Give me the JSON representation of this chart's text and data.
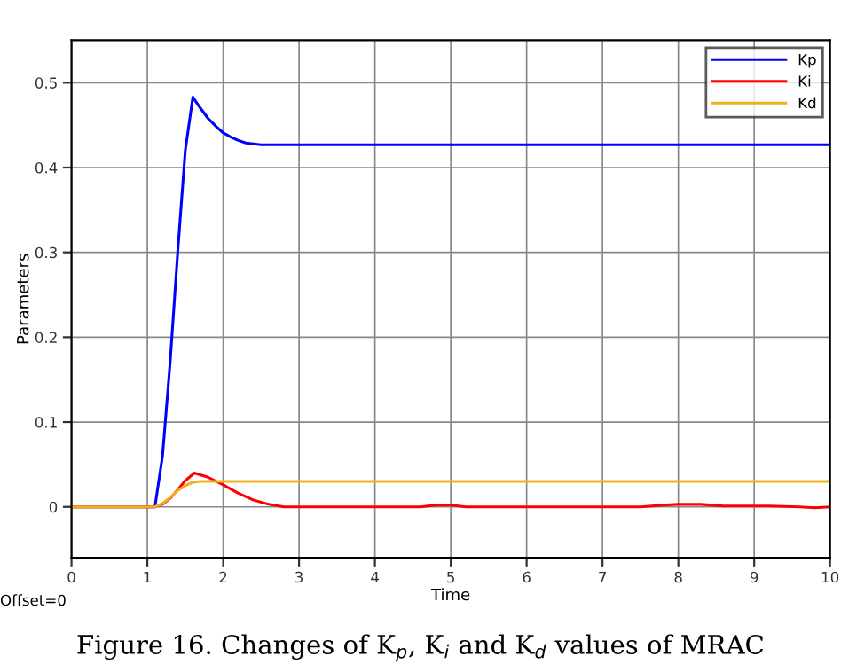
{
  "chart_data": {
    "type": "line",
    "xlabel": "Time",
    "ylabel": "Parameters",
    "xlim": [
      0,
      10
    ],
    "ylim": [
      -0.06,
      0.55
    ],
    "xticks": [
      0,
      1,
      2,
      3,
      4,
      5,
      6,
      7,
      8,
      9,
      10
    ],
    "yticks": [
      0,
      0.1,
      0.2,
      0.3,
      0.4,
      0.5
    ],
    "grid": true,
    "legend": "top right",
    "line_style": "solid",
    "annotations": [
      "Offset=0",
      "Figure 16. Changes of K$_{p}$, K$_{i}$ and K$_{d}$ values of MRAC"
    ],
    "series": [
      {
        "name": "Kp",
        "color": "#0000ff",
        "x": [
          0,
          1.1,
          1.2,
          1.3,
          1.4,
          1.5,
          1.6,
          1.7,
          1.8,
          1.9,
          2.0,
          2.1,
          2.2,
          2.3,
          2.5,
          3,
          10
        ],
        "values": [
          0,
          0,
          0.06,
          0.17,
          0.3,
          0.42,
          0.483,
          0.47,
          0.458,
          0.449,
          0.441,
          0.436,
          0.432,
          0.429,
          0.427,
          0.427,
          0.427
        ]
      },
      {
        "name": "Ki",
        "color": "#ff0000",
        "x": [
          0,
          1.1,
          1.2,
          1.3,
          1.4,
          1.5,
          1.62,
          1.8,
          2.0,
          2.2,
          2.4,
          2.6,
          2.8,
          4.6,
          4.8,
          5.0,
          5.2,
          7.5,
          7.8,
          8.0,
          8.3,
          8.6,
          9.2,
          9.6,
          9.8,
          10
        ],
        "values": [
          0,
          0,
          0.003,
          0.01,
          0.02,
          0.031,
          0.04,
          0.035,
          0.026,
          0.016,
          0.008,
          0.003,
          0,
          0,
          0.002,
          0.002,
          0,
          0,
          0.002,
          0.003,
          0.003,
          0.001,
          0.001,
          0,
          -0.001,
          0
        ]
      },
      {
        "name": "Kd",
        "color": "#edb120",
        "x": [
          0,
          1.1,
          1.2,
          1.3,
          1.4,
          1.5,
          1.6,
          1.7,
          1.8,
          10
        ],
        "values": [
          0,
          0,
          0.004,
          0.011,
          0.019,
          0.025,
          0.029,
          0.03,
          0.03,
          0.03
        ]
      }
    ]
  }
}
